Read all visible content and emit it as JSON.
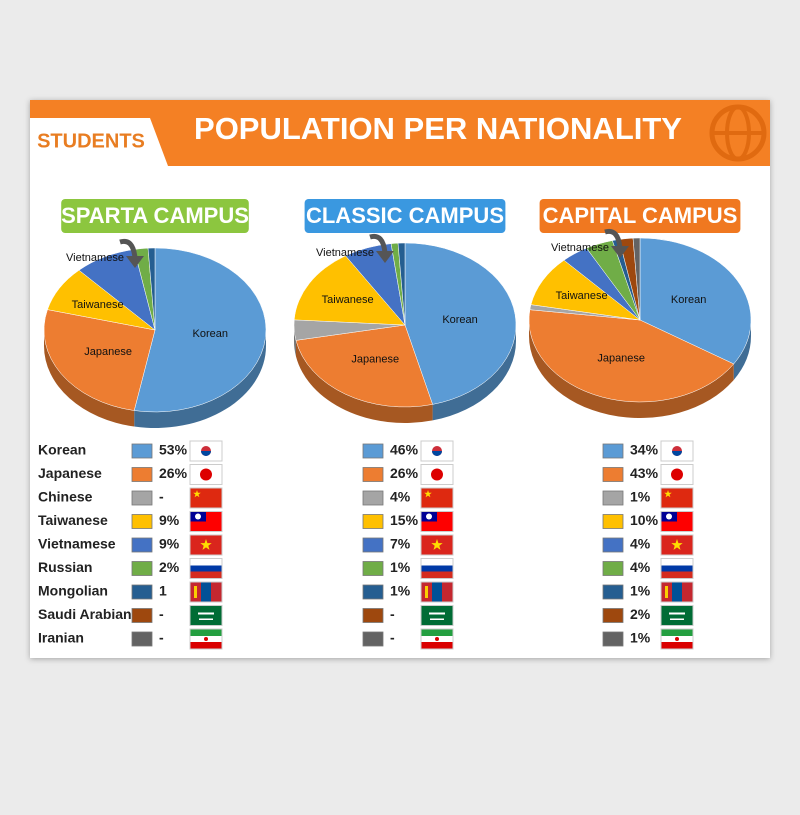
{
  "header": {
    "tag": "STUDENTS",
    "title": "POPULATION PER NATIONALITY"
  },
  "chart_data": [
    {
      "type": "pie",
      "title": "SPARTA CAMPUS",
      "title_color": "#8cc63f",
      "categories": [
        "Korean",
        "Japanese",
        "Chinese",
        "Taiwanese",
        "Vietnamese",
        "Russian",
        "Mongolian",
        "Saudi Arabian",
        "Iranian"
      ],
      "values": [
        53,
        26,
        null,
        9,
        9,
        2,
        1,
        null,
        null
      ],
      "value_labels": [
        "53%",
        "26%",
        "-",
        "9%",
        "9%",
        "2%",
        "1",
        "-",
        "-"
      ],
      "colors": [
        "#5b9bd5",
        "#ed7d31",
        "#a5a5a5",
        "#ffc000",
        "#4472c4",
        "#70ad47",
        "#255e91",
        "#9e480e",
        "#636363"
      ]
    },
    {
      "type": "pie",
      "title": "CLASSIC CAMPUS",
      "title_color": "#3a98e0",
      "categories": [
        "Korean",
        "Japanese",
        "Chinese",
        "Taiwanese",
        "Vietnamese",
        "Russian",
        "Mongolian",
        "Saudi Arabian",
        "Iranian"
      ],
      "values": [
        46,
        26,
        4,
        15,
        7,
        1,
        1,
        null,
        null
      ],
      "value_labels": [
        "46%",
        "26%",
        "4%",
        "15%",
        "7%",
        "1%",
        "1%",
        "-",
        "-"
      ],
      "colors": [
        "#5b9bd5",
        "#ed7d31",
        "#a5a5a5",
        "#ffc000",
        "#4472c4",
        "#70ad47",
        "#255e91",
        "#9e480e",
        "#636363"
      ]
    },
    {
      "type": "pie",
      "title": "CAPITAL CAMPUS",
      "title_color": "#f07820",
      "categories": [
        "Korean",
        "Japanese",
        "Chinese",
        "Taiwanese",
        "Vietnamese",
        "Russian",
        "Mongolian",
        "Saudi Arabian",
        "Iranian"
      ],
      "values": [
        34,
        43,
        1,
        10,
        4,
        4,
        1,
        2,
        1
      ],
      "value_labels": [
        "34%",
        "43%",
        "1%",
        "10%",
        "4%",
        "4%",
        "1%",
        "2%",
        "1%"
      ],
      "colors": [
        "#5b9bd5",
        "#ed7d31",
        "#a5a5a5",
        "#ffc000",
        "#4472c4",
        "#70ad47",
        "#255e91",
        "#9e480e",
        "#636363"
      ]
    }
  ]
}
